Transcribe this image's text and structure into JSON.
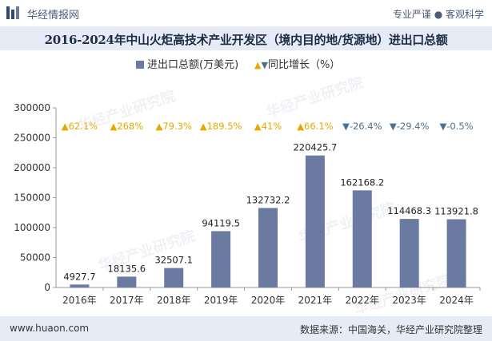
{
  "header": {
    "brand": "华经情报网",
    "tagline": "专业严谨 ● 客观科学"
  },
  "chart_data": {
    "type": "bar",
    "title": "2016-2024年中山火炬高技术产业开发区（境内目的地/货源地）进出口总额",
    "categories": [
      "2016年",
      "2017年",
      "2018年",
      "2019年",
      "2020年",
      "2021年",
      "2022年",
      "2023年",
      "2024年"
    ],
    "series": [
      {
        "name": "进出口总额(万美元)",
        "values": [
          4927.7,
          18135.6,
          32507.1,
          94119.5,
          132732.2,
          220425.7,
          162168.2,
          114468.3,
          113921.8
        ],
        "value_labels": [
          "4927.7",
          "18135.6",
          "32507.1",
          "94119.5",
          "132732.2",
          "220425.7",
          "162168.2",
          "114468.3",
          "113921.8"
        ],
        "color": "#6a7aa0"
      }
    ],
    "growth": {
      "name": "同比增长（%）",
      "labels": [
        "▲62.1%",
        "▲268%",
        "▲79.3%",
        "▲189.5%",
        "▲41%",
        "▲66.1%",
        "▼-26.4%",
        "▼-29.4%",
        "▼-0.5%"
      ],
      "values": [
        62.1,
        268,
        79.3,
        189.5,
        41,
        66.1,
        -26.4,
        -29.4,
        -0.5
      ],
      "up_color": "#e6a800",
      "down_color": "#4a7290"
    },
    "ylim": [
      0,
      300000
    ],
    "yticks": [
      0,
      50000,
      100000,
      150000,
      200000,
      250000,
      300000
    ],
    "ytick_labels": [
      "0",
      "50000",
      "100000",
      "150000",
      "200000",
      "250000",
      "300000"
    ],
    "xlabel": "",
    "ylabel": "",
    "grid": false,
    "legend_position": "top-center"
  },
  "legend": {
    "bar_label": "进出口总额(万美元)",
    "growth_marker": "▲▼",
    "growth_label": "同比增长（%）"
  },
  "footer": {
    "site": "www.huaon.com",
    "source": "数据来源：中国海关，华经产业研究院整理"
  },
  "watermark": "华经产业研究院"
}
